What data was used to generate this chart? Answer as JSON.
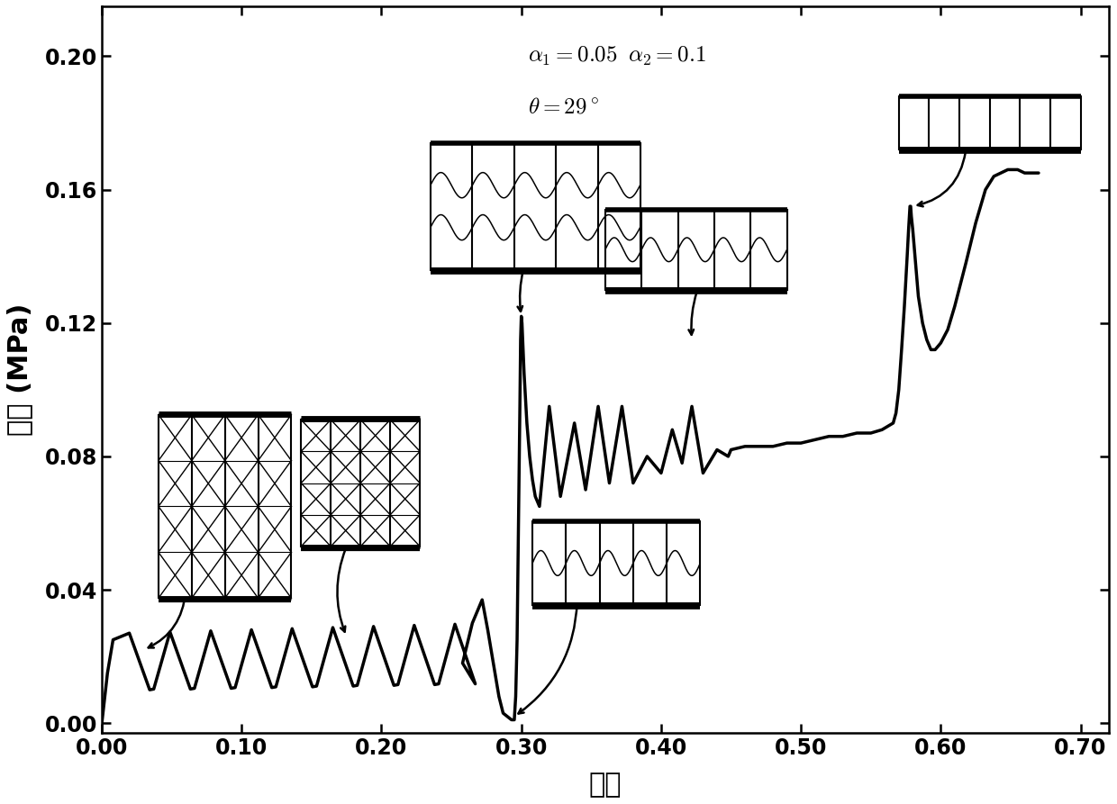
{
  "xlabel": "应变",
  "ylabel": "应力 (MPa)",
  "xlim": [
    0.0,
    0.72
  ],
  "ylim": [
    -0.003,
    0.215
  ],
  "xticks": [
    0.0,
    0.1,
    0.2,
    0.3,
    0.4,
    0.5,
    0.6,
    0.7
  ],
  "yticks": [
    0.0,
    0.04,
    0.08,
    0.12,
    0.16,
    0.2
  ],
  "annotation_text1": "$\\alpha_1 = 0.05\\;\\;\\alpha_2 = 0.1$",
  "annotation_text2": "$\\theta=29^\\circ$",
  "line_color": "#000000",
  "line_width": 2.5,
  "background_color": "#ffffff",
  "tick_fontsize": 17,
  "label_fontsize": 22
}
